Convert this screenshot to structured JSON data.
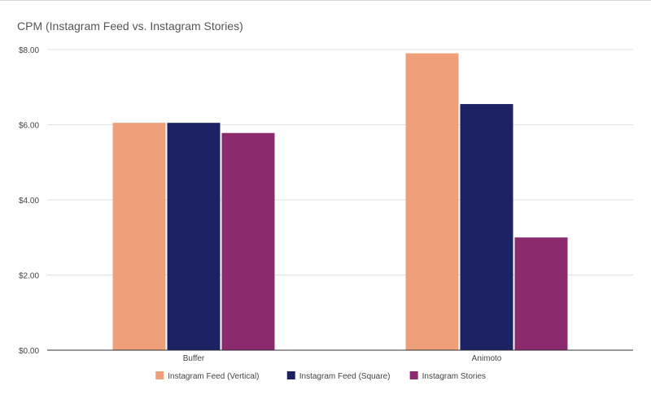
{
  "chart_data": {
    "type": "bar",
    "title": "CPM (Instagram Feed vs. Instagram Stories)",
    "categories": [
      "Buffer",
      "Animoto"
    ],
    "series": [
      {
        "name": "Instagram Feed (Vertical)",
        "values": [
          6.05,
          7.9
        ],
        "color": "#EFA07A"
      },
      {
        "name": "Instagram Feed (Square)",
        "values": [
          6.05,
          6.55
        ],
        "color": "#1B2162"
      },
      {
        "name": "Instagram Stories",
        "values": [
          5.78,
          3.0
        ],
        "color": "#8C2A6E"
      }
    ],
    "xlabel": "",
    "ylabel": "",
    "ylim": [
      0,
      8
    ],
    "yticks": [
      "$0.00",
      "$2.00",
      "$4.00",
      "$6.00",
      "$8.00"
    ],
    "grid": true,
    "legend_position": "bottom"
  }
}
